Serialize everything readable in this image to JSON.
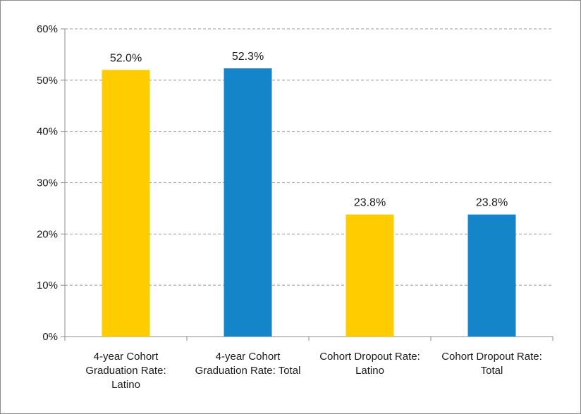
{
  "chart_data": {
    "type": "bar",
    "categories": [
      [
        "4-year Cohort",
        "Graduation Rate:",
        "Latino"
      ],
      [
        "4-year Cohort",
        "Graduation Rate: Total"
      ],
      [
        "Cohort Dropout Rate:",
        "Latino"
      ],
      [
        "Cohort Dropout Rate:",
        "Total"
      ]
    ],
    "values": [
      52.0,
      52.3,
      23.8,
      23.8
    ],
    "value_labels": [
      "52.0%",
      "52.3%",
      "23.8%",
      "23.8%"
    ],
    "bar_colors": [
      "#ffcc00",
      "#1385c8",
      "#ffcc00",
      "#1385c8"
    ],
    "ylim": [
      0,
      60
    ],
    "yticks": [
      0,
      10,
      20,
      30,
      40,
      50,
      60
    ],
    "ytick_labels": [
      "0%",
      "10%",
      "20%",
      "30%",
      "40%",
      "50%",
      "60%"
    ],
    "grid": true,
    "grid_style": "dashed",
    "legend": "none"
  }
}
